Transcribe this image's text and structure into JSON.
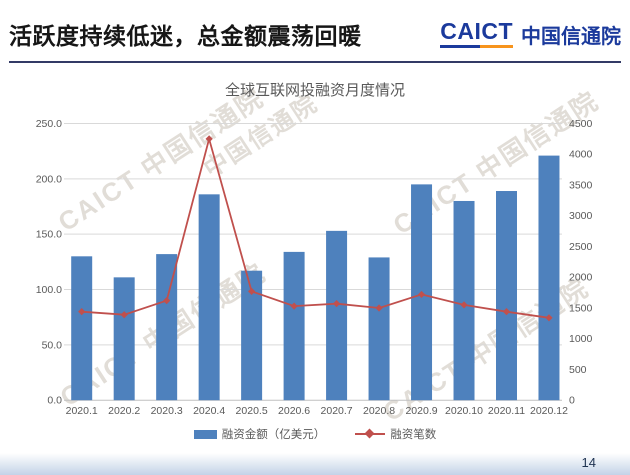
{
  "header": {
    "title": "活跃度持续低迷，总金额震荡回暖",
    "logo": {
      "latin": "CAICT",
      "cn": "中国信通院"
    }
  },
  "colors": {
    "bar": "#4e81bd",
    "line": "#c0504d",
    "logo_blue": "#1b3a9c",
    "logo_orange": "#f7941d",
    "grid": "#d9d9d9",
    "baseline": "#c0c0c0",
    "axis_text": "#595959"
  },
  "chart_data": {
    "type": "bar",
    "title": "全球互联网投融资月度情况",
    "categories": [
      "2020.1",
      "2020.2",
      "2020.3",
      "2020.4",
      "2020.5",
      "2020.6",
      "2020.7",
      "2020.8",
      "2020.9",
      "2020.10",
      "2020.11",
      "2020.12"
    ],
    "series": [
      {
        "name": "融资金额（亿美元）",
        "type": "bar",
        "axis": "left",
        "values": [
          130,
          111,
          132,
          186,
          117,
          134,
          153,
          129,
          195,
          180,
          189,
          221
        ]
      },
      {
        "name": "融资笔数",
        "type": "line",
        "axis": "right",
        "values": [
          1440,
          1390,
          1620,
          4250,
          1770,
          1530,
          1570,
          1500,
          1720,
          1550,
          1440,
          1340
        ]
      }
    ],
    "left_axis": {
      "min": 0,
      "max": 250,
      "step": 50,
      "labels": [
        "0.0",
        "50.0",
        "100.0",
        "150.0",
        "200.0",
        "250.0"
      ]
    },
    "right_axis": {
      "min": 0,
      "max": 4500,
      "step": 500,
      "labels": [
        "0",
        "500",
        "1000",
        "1500",
        "2000",
        "2500",
        "3000",
        "3500",
        "4000",
        "4500"
      ]
    },
    "grid": true,
    "legend_position": "bottom"
  },
  "watermark": {
    "text": "CAICT 中国信通院",
    "text_short": "中国信通院"
  },
  "footer": {
    "page_number": "14"
  }
}
